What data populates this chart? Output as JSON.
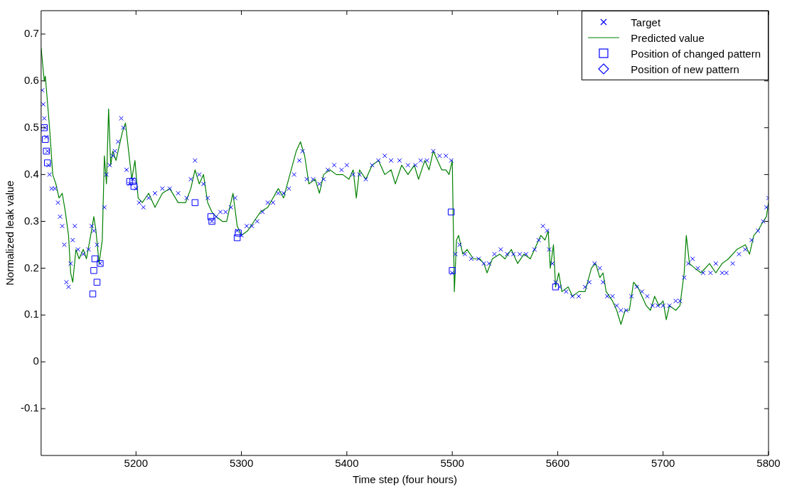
{
  "chart_data": {
    "type": "scatter",
    "xlabel": "Time step (four hours)",
    "ylabel": "Normalized leak value",
    "xlim": [
      5110,
      5800
    ],
    "ylim": [
      -0.2,
      0.75
    ],
    "xticks": [
      5200,
      5300,
      5400,
      5500,
      5600,
      5700,
      5800
    ],
    "yticks": [
      -0.1,
      0,
      0.1,
      0.2,
      0.3,
      0.4,
      0.5,
      0.6,
      0.7
    ],
    "grid": false,
    "legend": "top right",
    "series": [
      {
        "name": "Target",
        "marker": "cross",
        "color": "#0000ff",
        "x": [
          5111,
          5112,
          5113,
          5114,
          5115,
          5116,
          5117,
          5118,
          5120,
          5123,
          5126,
          5128,
          5130,
          5132,
          5134,
          5136,
          5138,
          5140,
          5142,
          5145,
          5150,
          5155,
          5158,
          5160,
          5163,
          5166,
          5170,
          5172,
          5175,
          5178,
          5180,
          5183,
          5186,
          5188,
          5191,
          5194,
          5197,
          5200,
          5203,
          5207,
          5212,
          5218,
          5225,
          5232,
          5240,
          5248,
          5252,
          5256,
          5260,
          5264,
          5268,
          5272,
          5276,
          5280,
          5285,
          5290,
          5294,
          5296,
          5300,
          5305,
          5310,
          5315,
          5320,
          5325,
          5330,
          5335,
          5340,
          5345,
          5350,
          5355,
          5358,
          5362,
          5368,
          5374,
          5378,
          5382,
          5388,
          5395,
          5400,
          5406,
          5412,
          5418,
          5424,
          5430,
          5436,
          5442,
          5450,
          5458,
          5465,
          5470,
          5476,
          5482,
          5488,
          5494,
          5499,
          5500,
          5503,
          5507,
          5512,
          5518,
          5525,
          5530,
          5535,
          5540,
          5546,
          5552,
          5558,
          5564,
          5570,
          5578,
          5582,
          5586,
          5590,
          5592,
          5595,
          5598,
          5602,
          5608,
          5614,
          5620,
          5626,
          5630,
          5635,
          5640,
          5643,
          5647,
          5652,
          5656,
          5660,
          5665,
          5670,
          5675,
          5680,
          5685,
          5690,
          5695,
          5700,
          5706,
          5712,
          5716,
          5720,
          5724,
          5728,
          5733,
          5738,
          5745,
          5750,
          5756,
          5760,
          5766,
          5772,
          5778,
          5784,
          5790,
          5795,
          5798,
          5800
        ],
        "values": [
          0.58,
          0.55,
          0.52,
          0.5,
          0.48,
          0.45,
          0.42,
          0.4,
          0.37,
          0.37,
          0.34,
          0.31,
          0.29,
          0.25,
          0.17,
          0.16,
          0.21,
          0.26,
          0.29,
          0.24,
          0.23,
          0.24,
          0.29,
          0.28,
          0.25,
          0.21,
          0.33,
          0.4,
          0.42,
          0.44,
          0.45,
          0.47,
          0.52,
          0.5,
          0.41,
          0.38,
          0.39,
          0.37,
          0.34,
          0.33,
          0.35,
          0.36,
          0.37,
          0.37,
          0.36,
          0.35,
          0.39,
          0.43,
          0.4,
          0.38,
          0.35,
          0.3,
          0.31,
          0.32,
          0.32,
          0.33,
          0.35,
          0.28,
          0.27,
          0.29,
          0.29,
          0.3,
          0.32,
          0.34,
          0.34,
          0.36,
          0.36,
          0.37,
          0.4,
          0.43,
          0.45,
          0.39,
          0.39,
          0.38,
          0.39,
          0.41,
          0.42,
          0.41,
          0.42,
          0.4,
          0.4,
          0.39,
          0.42,
          0.43,
          0.44,
          0.43,
          0.43,
          0.42,
          0.42,
          0.43,
          0.43,
          0.45,
          0.44,
          0.44,
          0.43,
          0.19,
          0.23,
          0.25,
          0.23,
          0.22,
          0.22,
          0.21,
          0.21,
          0.23,
          0.24,
          0.23,
          0.23,
          0.23,
          0.23,
          0.24,
          0.26,
          0.29,
          0.28,
          0.24,
          0.21,
          0.17,
          0.16,
          0.15,
          0.14,
          0.14,
          0.16,
          0.17,
          0.21,
          0.2,
          0.17,
          0.14,
          0.14,
          0.12,
          0.11,
          0.11,
          0.14,
          0.16,
          0.15,
          0.14,
          0.12,
          0.12,
          0.12,
          0.12,
          0.13,
          0.13,
          0.18,
          0.21,
          0.22,
          0.2,
          0.19,
          0.19,
          0.21,
          0.19,
          0.19,
          0.21,
          0.23,
          0.24,
          0.26,
          0.28,
          0.3,
          0.33,
          0.35
        ]
      },
      {
        "name": "Predicted value",
        "type": "line",
        "marker": "none",
        "line_style": "solid",
        "color": "#008000",
        "x": [
          5110,
          5113,
          5114,
          5118,
          5121,
          5124,
          5127,
          5130,
          5133,
          5136,
          5138,
          5140,
          5143,
          5146,
          5150,
          5153,
          5157,
          5160,
          5162,
          5165,
          5168,
          5170,
          5172,
          5174,
          5176,
          5178,
          5181,
          5184,
          5187,
          5190,
          5193,
          5196,
          5199,
          5202,
          5206,
          5212,
          5218,
          5225,
          5232,
          5240,
          5247,
          5252,
          5256,
          5260,
          5264,
          5268,
          5272,
          5276,
          5282,
          5286,
          5290,
          5292,
          5296,
          5300,
          5306,
          5312,
          5318,
          5325,
          5330,
          5335,
          5340,
          5346,
          5352,
          5356,
          5360,
          5364,
          5370,
          5374,
          5378,
          5384,
          5390,
          5396,
          5402,
          5406,
          5409,
          5412,
          5418,
          5424,
          5430,
          5436,
          5442,
          5446,
          5452,
          5458,
          5464,
          5468,
          5474,
          5478,
          5482,
          5486,
          5490,
          5494,
          5497,
          5500,
          5502,
          5504,
          5506,
          5510,
          5514,
          5520,
          5526,
          5530,
          5533,
          5538,
          5545,
          5550,
          5556,
          5562,
          5568,
          5574,
          5580,
          5584,
          5588,
          5591,
          5593,
          5596,
          5598,
          5601,
          5604,
          5610,
          5614,
          5620,
          5626,
          5632,
          5636,
          5640,
          5643,
          5646,
          5652,
          5656,
          5660,
          5664,
          5668,
          5672,
          5676,
          5680,
          5684,
          5688,
          5692,
          5696,
          5700,
          5703,
          5706,
          5712,
          5716,
          5720,
          5722,
          5725,
          5730,
          5736,
          5744,
          5750,
          5756,
          5762,
          5770,
          5778,
          5782,
          5786,
          5790,
          5795,
          5798,
          5800
        ],
        "values": [
          0.67,
          0.6,
          0.61,
          0.5,
          0.4,
          0.38,
          0.35,
          0.36,
          0.32,
          0.27,
          0.19,
          0.17,
          0.24,
          0.22,
          0.24,
          0.22,
          0.27,
          0.31,
          0.28,
          0.21,
          0.26,
          0.44,
          0.38,
          0.54,
          0.42,
          0.45,
          0.43,
          0.46,
          0.49,
          0.51,
          0.45,
          0.39,
          0.43,
          0.35,
          0.34,
          0.36,
          0.33,
          0.36,
          0.37,
          0.34,
          0.34,
          0.37,
          0.41,
          0.38,
          0.4,
          0.34,
          0.32,
          0.31,
          0.3,
          0.3,
          0.34,
          0.36,
          0.29,
          0.27,
          0.28,
          0.3,
          0.32,
          0.33,
          0.35,
          0.37,
          0.35,
          0.4,
          0.45,
          0.47,
          0.44,
          0.38,
          0.39,
          0.36,
          0.4,
          0.41,
          0.4,
          0.4,
          0.39,
          0.41,
          0.35,
          0.41,
          0.39,
          0.42,
          0.43,
          0.4,
          0.41,
          0.38,
          0.42,
          0.4,
          0.42,
          0.39,
          0.43,
          0.41,
          0.45,
          0.43,
          0.41,
          0.41,
          0.4,
          0.43,
          0.15,
          0.26,
          0.27,
          0.23,
          0.24,
          0.22,
          0.22,
          0.21,
          0.19,
          0.22,
          0.23,
          0.22,
          0.24,
          0.21,
          0.23,
          0.22,
          0.25,
          0.27,
          0.26,
          0.28,
          0.2,
          0.25,
          0.16,
          0.19,
          0.15,
          0.16,
          0.14,
          0.15,
          0.15,
          0.2,
          0.21,
          0.18,
          0.19,
          0.15,
          0.13,
          0.11,
          0.08,
          0.11,
          0.11,
          0.17,
          0.16,
          0.14,
          0.12,
          0.11,
          0.14,
          0.12,
          0.13,
          0.09,
          0.12,
          0.11,
          0.12,
          0.19,
          0.27,
          0.21,
          0.2,
          0.19,
          0.21,
          0.19,
          0.21,
          0.22,
          0.24,
          0.25,
          0.23,
          0.27,
          0.28,
          0.3,
          0.31,
          0.34
        ]
      },
      {
        "name": "Position of changed pattern",
        "marker": "square",
        "color": "#0000ff",
        "x": [
          5113,
          5114,
          5115,
          5116,
          5159,
          5160,
          5161,
          5163,
          5166,
          5194,
          5197,
          5198,
          5256,
          5271,
          5272,
          5296,
          5297,
          5499,
          5500,
          5598
        ],
        "values": [
          0.5,
          0.475,
          0.45,
          0.425,
          0.145,
          0.195,
          0.22,
          0.17,
          0.21,
          0.385,
          0.385,
          0.375,
          0.34,
          0.31,
          0.3,
          0.265,
          0.275,
          0.32,
          0.195,
          0.16
        ]
      },
      {
        "name": "Position of new pattern",
        "marker": "diamond",
        "color": "#0000ff"
      }
    ]
  }
}
